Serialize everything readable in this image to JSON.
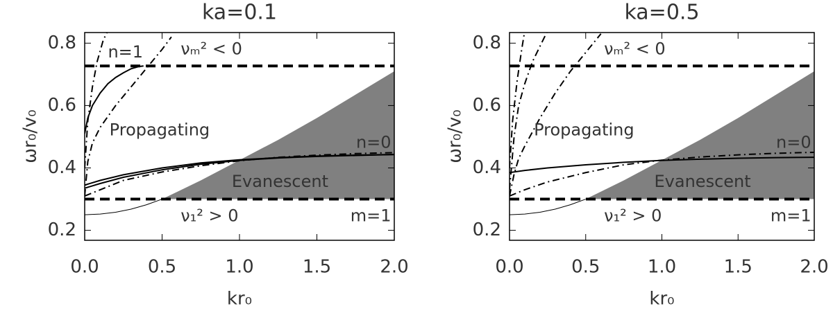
{
  "chart_data": [
    {
      "type": "line",
      "title": "ka=0.1",
      "xlabel": "kr₀",
      "ylabel": "ωr₀/v₀",
      "xlim": [
        0,
        2
      ],
      "ylim": [
        0.168,
        0.834
      ],
      "xticks": [
        {
          "value": 0,
          "label": "0.0"
        },
        0.5,
        {
          "value": 1,
          "label": "1.0"
        },
        1.5,
        {
          "value": 2,
          "label": "2.0"
        }
      ],
      "yticks": [
        0.2,
        0.4,
        0.6,
        0.8
      ],
      "annotations": [
        "νₘ² < 0",
        "n=1",
        "Propagating",
        "n=0",
        "Evanescent",
        "ν₁² > 0",
        "m=1"
      ],
      "series": [
        {
          "style": "fill",
          "color": "#808080",
          "x": [
            0.5,
            0.75,
            1,
            1.25,
            1.5,
            1.75,
            2
          ],
          "values": [
            0.3,
            0.36,
            0.425,
            0.49,
            0.56,
            0.635,
            0.71
          ]
        },
        {
          "style": "thin",
          "color": "#000000",
          "x": [
            0,
            0.1,
            0.2,
            0.3,
            0.4,
            0.5
          ],
          "values": [
            0.25,
            0.252,
            0.258,
            0.268,
            0.282,
            0.3
          ]
        },
        {
          "style": "dash",
          "color": "#000000",
          "x": [
            0,
            2
          ],
          "values": [
            0.727,
            0.727
          ]
        },
        {
          "style": "dash",
          "color": "#000000",
          "x": [
            0,
            2
          ],
          "values": [
            0.3,
            0.3
          ]
        },
        {
          "style": "solid",
          "color": "#000000",
          "x": [
            0,
            0.1,
            0.25,
            0.5,
            0.75,
            1,
            1.25,
            1.5,
            1.75,
            2
          ],
          "values": [
            0.345,
            0.36,
            0.378,
            0.4,
            0.416,
            0.426,
            0.433,
            0.438,
            0.441,
            0.443
          ]
        },
        {
          "style": "solid",
          "color": "#000000",
          "x": [
            0,
            0.1,
            0.25,
            0.5,
            0.75,
            1,
            1.25,
            1.5,
            1.75,
            2
          ],
          "values": [
            0.335,
            0.35,
            0.37,
            0.394,
            0.412,
            0.424,
            0.432,
            0.437,
            0.44,
            0.443
          ]
        },
        {
          "style": "dashdot",
          "color": "#000000",
          "x": [
            0,
            0.1,
            0.25,
            0.5,
            0.75,
            1,
            1.25,
            1.5,
            1.75,
            2
          ],
          "values": [
            0.31,
            0.33,
            0.36,
            0.387,
            0.407,
            0.423,
            0.434,
            0.441,
            0.446,
            0.449
          ]
        },
        {
          "style": "solid",
          "color": "#000000",
          "x": [
            0,
            0.02,
            0.05,
            0.1,
            0.15,
            0.2,
            0.25,
            0.3,
            0.35,
            0.38
          ],
          "values": [
            0.51,
            0.56,
            0.6,
            0.64,
            0.67,
            0.69,
            0.705,
            0.718,
            0.725,
            0.727
          ]
        },
        {
          "style": "dashdot",
          "color": "#000000",
          "x": [
            0,
            0.02,
            0.05,
            0.08,
            0.12,
            0.15
          ],
          "values": [
            0.4,
            0.55,
            0.66,
            0.74,
            0.81,
            0.84
          ]
        },
        {
          "style": "dashdot",
          "color": "#000000",
          "x": [
            0,
            0.02,
            0.05,
            0.1,
            0.2,
            0.3,
            0.4,
            0.5,
            0.56
          ],
          "values": [
            0.31,
            0.42,
            0.48,
            0.53,
            0.6,
            0.66,
            0.72,
            0.78,
            0.82
          ]
        }
      ]
    },
    {
      "type": "line",
      "title": "ka=0.5",
      "xlabel": "kr₀",
      "ylabel": "ωr₀/v₀",
      "xlim": [
        0,
        2
      ],
      "ylim": [
        0.168,
        0.834
      ],
      "xticks": [
        {
          "value": 0,
          "label": "0.0"
        },
        0.5,
        {
          "value": 1,
          "label": "1.0"
        },
        1.5,
        {
          "value": 2,
          "label": "2.0"
        }
      ],
      "yticks": [
        0.2,
        0.4,
        0.6,
        0.8
      ],
      "annotations": [
        "νₘ² < 0",
        "Propagating",
        "n=0",
        "Evanescent",
        "ν₁² > 0",
        "m=1"
      ],
      "series": [
        {
          "style": "fill",
          "color": "#808080",
          "x": [
            0.5,
            0.75,
            1,
            1.25,
            1.5,
            1.75,
            2
          ],
          "values": [
            0.3,
            0.36,
            0.425,
            0.49,
            0.56,
            0.635,
            0.71
          ]
        },
        {
          "style": "thin",
          "color": "#000000",
          "x": [
            0,
            0.1,
            0.2,
            0.3,
            0.4,
            0.5
          ],
          "values": [
            0.25,
            0.252,
            0.258,
            0.268,
            0.282,
            0.3
          ]
        },
        {
          "style": "dash",
          "color": "#000000",
          "x": [
            0,
            2
          ],
          "values": [
            0.727,
            0.727
          ]
        },
        {
          "style": "dash",
          "color": "#000000",
          "x": [
            0,
            2
          ],
          "values": [
            0.3,
            0.3
          ]
        },
        {
          "style": "solid",
          "color": "#000000",
          "x": [
            0,
            0.1,
            0.25,
            0.5,
            0.75,
            1,
            1.25,
            1.5,
            1.75,
            2
          ],
          "values": [
            0.385,
            0.392,
            0.4,
            0.41,
            0.418,
            0.424,
            0.428,
            0.431,
            0.433,
            0.434
          ]
        },
        {
          "style": "dashdot",
          "color": "#000000",
          "x": [
            0,
            0.1,
            0.25,
            0.5,
            0.75,
            1,
            1.25,
            1.5,
            1.75,
            2
          ],
          "values": [
            0.31,
            0.33,
            0.355,
            0.385,
            0.41,
            0.425,
            0.435,
            0.442,
            0.447,
            0.45
          ]
        },
        {
          "style": "dashdot",
          "color": "#000000",
          "x": [
            0,
            0.02,
            0.05,
            0.08,
            0.1
          ],
          "values": [
            0.4,
            0.55,
            0.68,
            0.78,
            0.84
          ]
        },
        {
          "style": "dashdot",
          "color": "#000000",
          "x": [
            0,
            0.03,
            0.06,
            0.1,
            0.15,
            0.2,
            0.25
          ],
          "values": [
            0.33,
            0.5,
            0.6,
            0.67,
            0.74,
            0.79,
            0.84
          ]
        },
        {
          "style": "dashdot",
          "color": "#000000",
          "x": [
            0,
            0.03,
            0.06,
            0.1,
            0.2,
            0.3,
            0.4,
            0.5,
            0.6
          ],
          "values": [
            0.31,
            0.38,
            0.43,
            0.47,
            0.56,
            0.64,
            0.71,
            0.77,
            0.83
          ]
        }
      ]
    }
  ]
}
